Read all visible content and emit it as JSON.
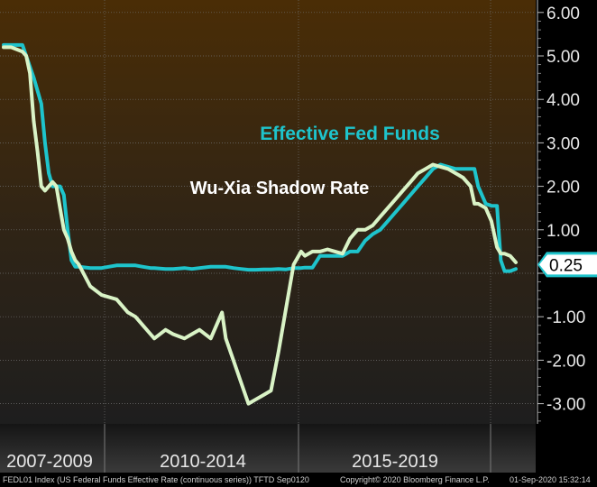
{
  "chart_data": {
    "type": "line",
    "title": "",
    "xlabel": "",
    "ylabel": "",
    "ylim": [
      -3.5,
      6.2
    ],
    "y_ticks": [
      "6.00",
      "5.00",
      "4.00",
      "3.00",
      "2.00",
      "1.00",
      "",
      "-1.00",
      "-2.00",
      "-3.00"
    ],
    "y_tick_values": [
      6,
      5,
      4,
      3,
      2,
      1,
      0,
      -1,
      -2,
      -3
    ],
    "x_period_labels": [
      "2007-2009",
      "2010-2014",
      "2015-2019"
    ],
    "grid": true,
    "last_value_label": "0.25",
    "x": [
      2007.0,
      2007.2,
      2007.5,
      2007.6,
      2007.7,
      2007.8,
      2007.9,
      2008.0,
      2008.1,
      2008.2,
      2008.3,
      2008.4,
      2008.5,
      2008.6,
      2008.7,
      2008.8,
      2008.9,
      2009.0,
      2009.3,
      2009.6,
      2010.0,
      2010.3,
      2010.5,
      2010.7,
      2010.9,
      2011.0,
      2011.3,
      2011.5,
      2011.8,
      2012.0,
      2012.2,
      2012.5,
      2012.8,
      2012.9,
      2013.1,
      2013.3,
      2013.5,
      2013.7,
      2013.9,
      2014.1,
      2014.3,
      2014.5,
      2014.7,
      2014.9,
      2015.0,
      2015.2,
      2015.4,
      2015.6,
      2015.8,
      2016.0,
      2016.2,
      2016.4,
      2016.6,
      2016.8,
      2017.0,
      2017.2,
      2017.4,
      2017.6,
      2017.8,
      2018.0,
      2018.2,
      2018.4,
      2018.6,
      2018.8,
      2019.0,
      2019.2,
      2019.4,
      2019.5,
      2019.6,
      2019.8,
      2019.95,
      2020.1,
      2020.2,
      2020.3,
      2020.45,
      2020.6
    ],
    "series": [
      {
        "name": "Effective Fed Funds",
        "color": "#1EC4CC",
        "values": [
          5.25,
          5.25,
          5.25,
          5.0,
          4.75,
          4.5,
          4.2,
          3.9,
          3.0,
          2.3,
          2.0,
          2.0,
          2.0,
          1.8,
          1.0,
          0.3,
          0.15,
          0.15,
          0.12,
          0.12,
          0.18,
          0.18,
          0.18,
          0.15,
          0.12,
          0.12,
          0.1,
          0.1,
          0.12,
          0.1,
          0.12,
          0.15,
          0.15,
          0.15,
          0.12,
          0.1,
          0.08,
          0.08,
          0.09,
          0.09,
          0.1,
          0.09,
          0.12,
          0.12,
          0.13,
          0.13,
          0.4,
          0.4,
          0.4,
          0.4,
          0.5,
          0.5,
          0.75,
          0.9,
          1.0,
          1.2,
          1.4,
          1.6,
          1.8,
          2.0,
          2.2,
          2.4,
          2.5,
          2.45,
          2.4,
          2.4,
          2.4,
          2.4,
          2.0,
          1.6,
          1.55,
          1.55,
          0.3,
          0.05,
          0.05,
          0.1
        ]
      },
      {
        "name": "Wu-Xia Shadow Rate",
        "color": "#D9F3C6",
        "values": [
          5.2,
          5.2,
          5.1,
          5.0,
          4.6,
          3.5,
          2.8,
          2.0,
          1.9,
          2.0,
          2.1,
          2.0,
          1.5,
          1.0,
          0.8,
          0.5,
          0.3,
          0.2,
          -0.3,
          -0.5,
          -0.6,
          -0.9,
          -1.0,
          -1.2,
          -1.4,
          -1.5,
          -1.3,
          -1.4,
          -1.5,
          -1.4,
          -1.3,
          -1.5,
          -0.9,
          -1.5,
          -2.0,
          -2.5,
          -3.0,
          -2.9,
          -2.8,
          -2.7,
          -1.8,
          -0.8,
          0.2,
          0.5,
          0.4,
          0.5,
          0.5,
          0.55,
          0.5,
          0.45,
          0.8,
          1.0,
          1.0,
          1.1,
          1.3,
          1.5,
          1.7,
          1.9,
          2.1,
          2.3,
          2.4,
          2.5,
          2.45,
          2.4,
          2.3,
          2.2,
          2.0,
          1.6,
          1.6,
          1.5,
          1.2,
          0.6,
          0.45,
          0.45,
          0.4,
          0.25
        ]
      }
    ],
    "annotations": [
      "Effective Fed Funds",
      "Wu-Xia Shadow Rate"
    ]
  },
  "footer": {
    "source": "FEDL01 Index (US Federal Funds Effective Rate (continuous series)) TFTD Sep0120",
    "copyright": "Copyright© 2020 Bloomberg Finance L.P.",
    "timestamp": "01-Sep-2020 15:32:14"
  }
}
